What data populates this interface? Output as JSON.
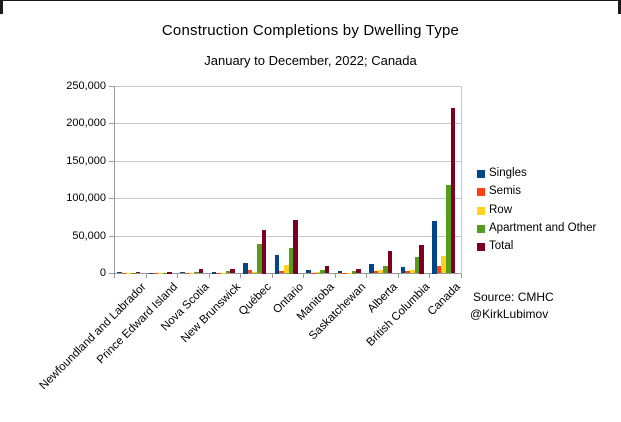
{
  "title": "Construction Completions by Dwelling Type",
  "subtitle": "January to December, 2022; Canada",
  "source": {
    "line1": "Source: CMHC",
    "line2": "@KirkLubimov"
  },
  "chart_data": {
    "type": "bar",
    "title": "Construction Completions by Dwelling Type",
    "subtitle": "January to December, 2022; Canada",
    "categories": [
      "Newfoundland and Labrador",
      "Prince Edward Island",
      "Nova Scotia",
      "New Brunswick",
      "Québec",
      "Ontario",
      "Manitoba",
      "Saskatchewan",
      "Alberta",
      "British Columbia",
      "Canada"
    ],
    "series": [
      {
        "name": "Singles",
        "color": "#004586",
        "values": [
          1800,
          500,
          2400,
          2000,
          13500,
          24500,
          4200,
          2700,
          12400,
          8400,
          69500
        ]
      },
      {
        "name": "Semis",
        "color": "#FF420E",
        "values": [
          100,
          100,
          400,
          400,
          4100,
          3300,
          500,
          400,
          3100,
          2700,
          10600
        ]
      },
      {
        "name": "Row",
        "color": "#FFD320",
        "values": [
          150,
          200,
          600,
          600,
          1600,
          11200,
          1400,
          1100,
          5300,
          4400,
          23100
        ]
      },
      {
        "name": "Apartment and Other",
        "color": "#579D1C",
        "values": [
          400,
          1200,
          2400,
          2700,
          39800,
          34500,
          5300,
          3000,
          9800,
          22100,
          117600
        ]
      },
      {
        "name": "Total",
        "color": "#7E0021",
        "values": [
          2400,
          2000,
          5800,
          5700,
          58500,
          72000,
          10600,
          6400,
          29700,
          38500,
          220300
        ]
      }
    ],
    "ylabel": "",
    "xlabel": "",
    "ylim": [
      0,
      250000
    ],
    "ytick_step": 50000,
    "ytick_labels": [
      "0",
      "50,000",
      "100,000",
      "150,000",
      "200,000",
      "250,000"
    ],
    "grid": true,
    "legend_position": "right"
  },
  "colors": {
    "grid": "#c8c8c8",
    "axis": "#9a9a9a",
    "frame": "#1a1a1a"
  }
}
